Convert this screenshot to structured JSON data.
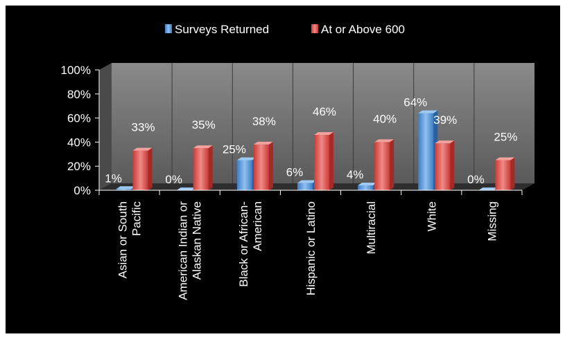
{
  "chart_data": {
    "type": "bar",
    "title": "",
    "xlabel": "",
    "ylabel": "",
    "ylim": [
      0,
      100
    ],
    "y_ticks": [
      "0%",
      "20%",
      "40%",
      "60%",
      "80%",
      "100%"
    ],
    "y_tick_values": [
      0,
      20,
      40,
      60,
      80,
      100
    ],
    "grid": false,
    "legend_position": "top",
    "style": "3d-column",
    "categories": [
      [
        "Asian or South",
        "Pacific"
      ],
      [
        "American Indian or",
        "Alaskan Native"
      ],
      [
        "Black or African-",
        "American"
      ],
      [
        "Hispanic or Latino"
      ],
      [
        "Multiracial"
      ],
      [
        "White"
      ],
      [
        "Missing"
      ]
    ],
    "series": [
      {
        "name": "Surveys Returned",
        "color": "#5b9bd5",
        "values": [
          1,
          0,
          25,
          6,
          4,
          64,
          0
        ],
        "labels": [
          "1%",
          "0%",
          "25%",
          "6%",
          "4%",
          "64%",
          "0%"
        ]
      },
      {
        "name": "At or Above 600",
        "color": "#e0524e",
        "values": [
          33,
          35,
          38,
          46,
          40,
          39,
          25
        ],
        "labels": [
          "33%",
          "35%",
          "38%",
          "46%",
          "40%",
          "39%",
          "25%"
        ]
      }
    ]
  }
}
